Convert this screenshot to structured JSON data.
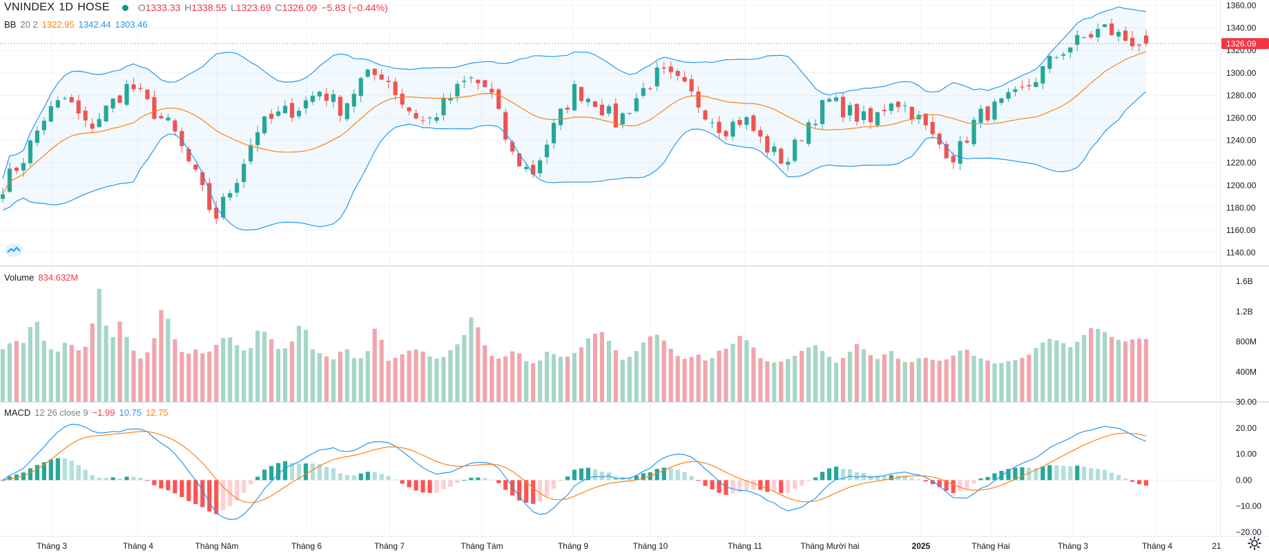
{
  "symbol_bar": {
    "symbol": "VNINDEX",
    "interval": "1D",
    "exchange": "HOSE",
    "status_color": "#089981",
    "open_label": "O",
    "open": "1333.33",
    "high_label": "H",
    "high": "1338.55",
    "low_label": "L",
    "low": "1323.69",
    "close_label": "C",
    "close": "1326.09",
    "change": "−5.83 (−0.44%)"
  },
  "bb_legend": {
    "name": "BB",
    "params": "20 2",
    "basis": "1322.95",
    "upper": "1342.44",
    "lower": "1303.46"
  },
  "volume_legend": {
    "name": "Volume",
    "value": "834.632M"
  },
  "macd_legend": {
    "name": "MACD",
    "params": "12 26 close 9",
    "hist": "−1.99",
    "macd": "10.75",
    "signal": "12.75"
  },
  "price_tag": "1326.09",
  "price_axis": [
    "1360.00",
    "1340.00",
    "1320.00",
    "1300.00",
    "1280.00",
    "1260.00",
    "1240.00",
    "1220.00",
    "1200.00",
    "1180.00",
    "1160.00",
    "1140.00"
  ],
  "volume_axis": [
    "1.6B",
    "1.2B",
    "800M",
    "400M"
  ],
  "macd_axis": [
    "30.00",
    "20.00",
    "10.00",
    "0.00",
    "−10.00",
    "−20.00"
  ],
  "time_axis": [
    "Tháng 3",
    "Tháng 4",
    "Tháng Năm",
    "Tháng 6",
    "Tháng 7",
    "Tháng Tám",
    "Tháng 9",
    "Tháng 10",
    "Tháng 11",
    "Tháng Mười hai",
    "2025",
    "Tháng Hai",
    "Tháng 3",
    "Tháng 4",
    "21"
  ],
  "colors": {
    "up": "#26a69a",
    "down": "#ef5350",
    "up_volume": "#a5d6c7",
    "down_volume": "#f0a6ac",
    "bb_basis": "#ff7f0e",
    "bb_band": "#2196f3",
    "macd_line": "#2196f3",
    "signal_line": "#ff7f0e"
  },
  "chart_data": [
    {
      "type": "candlestick",
      "title": "VNINDEX 1D HOSE",
      "price_range": [
        1140,
        1360
      ],
      "grid": true,
      "x": [
        "Tháng 3",
        "Tháng 4",
        "Tháng Năm",
        "Tháng 6",
        "Tháng 7",
        "Tháng Tám",
        "Tháng 9",
        "Tháng 10",
        "Tháng 11",
        "Tháng Mười hai",
        "2025",
        "Tháng Hai",
        "Tháng 3"
      ],
      "close_path": [
        1200,
        1225,
        1262,
        1278,
        1250,
        1270,
        1290,
        1268,
        1250,
        1212,
        1170,
        1205,
        1250,
        1262,
        1270,
        1285,
        1268,
        1295,
        1300,
        1270,
        1255,
        1275,
        1295,
        1285,
        1228,
        1210,
        1250,
        1285,
        1275,
        1255,
        1280,
        1300,
        1290,
        1270,
        1250,
        1260,
        1235,
        1220,
        1255,
        1275,
        1265,
        1255,
        1278,
        1265,
        1240,
        1225,
        1260,
        1270,
        1280,
        1300,
        1320,
        1330,
        1340,
        1330,
        1326
      ],
      "last": {
        "open": 1333.33,
        "high": 1338.55,
        "low": 1323.69,
        "close": 1326.09
      }
    },
    {
      "type": "line",
      "title": "BB 20 2",
      "series": [
        {
          "name": "basis",
          "last": 1322.95
        },
        {
          "name": "upper",
          "last": 1342.44
        },
        {
          "name": "lower",
          "last": 1303.46
        }
      ]
    },
    {
      "type": "bar",
      "title": "Volume",
      "y_range": [
        0,
        1600000000
      ],
      "last": 834632000,
      "level_path": [
        700,
        820,
        780,
        1150,
        760,
        640,
        820,
        680,
        750,
        1520,
        760,
        1080,
        720,
        560,
        740,
        1320,
        860,
        600,
        700,
        620,
        760,
        900,
        740,
        640,
        1000,
        860,
        660,
        780,
        1100,
        700,
        620,
        560,
        740,
        560,
        600,
        1060,
        540,
        600,
        680,
        700,
        600,
        560,
        700,
        820,
        1180,
        780,
        560,
        600,
        700,
        540,
        500,
        680,
        600,
        600,
        700,
        880,
        940,
        760,
        560,
        620,
        800,
        920,
        800,
        620,
        560,
        640,
        520,
        680,
        720,
        880,
        780,
        560,
        520,
        540,
        600,
        700,
        760,
        640,
        520,
        620,
        780,
        640,
        560,
        700,
        540,
        520,
        600,
        560,
        540,
        620,
        720,
        600,
        560,
        500,
        540,
        560,
        620,
        760,
        840,
        800,
        720,
        860,
        1000,
        940,
        840,
        800,
        840,
        835
      ]
    },
    {
      "type": "bar",
      "title": "MACD 12 26 close 9",
      "y_range": [
        -20,
        30
      ],
      "series": [
        {
          "name": "histogram",
          "last": -1.99
        },
        {
          "name": "macd",
          "last": 10.75
        },
        {
          "name": "signal",
          "last": 12.75
        }
      ]
    }
  ]
}
